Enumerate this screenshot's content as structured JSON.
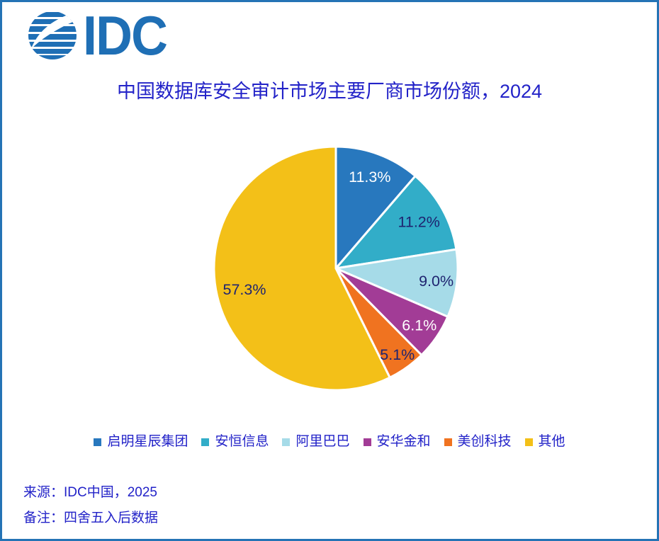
{
  "page": {
    "border_color": "#2473B5",
    "background_color": "#FFFFFF"
  },
  "logo": {
    "text": "IDC",
    "color": "#1F6FB5"
  },
  "title": "中国数据库安全审计市场主要厂商市场份额，2024",
  "title_color": "#2222C8",
  "text_color": "#2222C8",
  "pie_label_navy": "#1F2470",
  "chart_data": {
    "type": "pie",
    "title": "中国数据库安全审计市场主要厂商市场份额，2024",
    "start_angle_deg": 0,
    "direction": "clockwise",
    "legend_position": "bottom",
    "total": 100.0,
    "slices": [
      {
        "label": "启明星辰集团",
        "value": 11.3,
        "display": "11.3%",
        "color": "#2878BE",
        "label_color": "#FFFFFF",
        "label_r": 0.8
      },
      {
        "label": "安恒信息",
        "value": 11.2,
        "display": "11.2%",
        "color": "#32ADC8",
        "label_color": "#1F2470",
        "label_r": 0.78
      },
      {
        "label": "阿里巴巴",
        "value": 9.0,
        "display": "9.0%",
        "color": "#A6DBE8",
        "label_color": "#1F2470",
        "label_r": 0.83
      },
      {
        "label": "安华金和",
        "value": 6.1,
        "display": "6.1%",
        "color": "#A23C96",
        "label_color": "#FFFFFF",
        "label_r": 0.83
      },
      {
        "label": "美创科技",
        "value": 5.1,
        "display": "5.1%",
        "color": "#F07320",
        "label_color": "#1F2470",
        "label_r": 0.87
      },
      {
        "label": "其他",
        "value": 57.3,
        "display": "57.3%",
        "color": "#F3C018",
        "label_color": "#1F2470",
        "label_r": 0.77
      }
    ]
  },
  "footer": {
    "source": "来源：IDC中国，2025",
    "note": "备注：四舍五入后数据"
  }
}
